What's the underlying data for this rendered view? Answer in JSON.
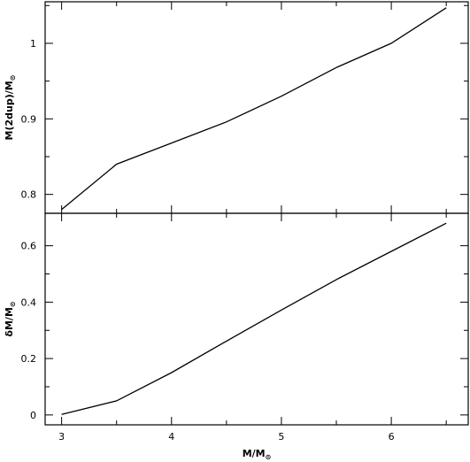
{
  "chart_data": [
    {
      "type": "line",
      "panel": "top",
      "title": "",
      "xlabel": "",
      "ylabel": "M(2dup)/M",
      "ylabel_subscript": "⊙",
      "xlim": [
        2.85,
        6.7
      ],
      "ylim": [
        0.775,
        1.055
      ],
      "grid": false,
      "x_ticks_major": [
        3,
        4,
        5,
        6
      ],
      "x_ticks_minor": [
        3.5,
        4.5,
        5.5,
        6.5
      ],
      "y_ticks_major": [
        0.8,
        0.9,
        1
      ],
      "y_tick_labels": [
        "0.8",
        "0.9",
        "1"
      ],
      "y_ticks_minor": [
        0.85,
        0.95,
        1.05
      ],
      "series": [
        {
          "x": [
            3,
            3.5,
            4,
            4.5,
            5,
            5.5,
            6,
            6.5
          ],
          "y": [
            0.78,
            0.84,
            0.868,
            0.896,
            0.93,
            0.968,
            1.0,
            1.047
          ]
        }
      ]
    },
    {
      "type": "line",
      "panel": "bottom",
      "title": "",
      "xlabel": "M/M",
      "xlabel_subscript": "⊙",
      "ylabel": "δM/M",
      "ylabel_subscript": "⊙",
      "xlim": [
        2.85,
        6.7
      ],
      "ylim": [
        -0.035,
        0.715
      ],
      "grid": false,
      "x_ticks_major": [
        3,
        4,
        5,
        6
      ],
      "x_tick_labels": [
        "3",
        "4",
        "5",
        "6"
      ],
      "x_ticks_minor": [
        3.5,
        4.5,
        5.5,
        6.5
      ],
      "y_ticks_major": [
        0,
        0.2,
        0.4,
        0.6
      ],
      "y_tick_labels": [
        "0",
        "0.2",
        "0.4",
        "0.6"
      ],
      "y_ticks_minor": [
        0.1,
        0.3,
        0.5
      ],
      "series": [
        {
          "x": [
            3,
            3.5,
            4,
            4.5,
            5,
            5.5,
            6,
            6.5
          ],
          "y": [
            0.002,
            0.05,
            0.15,
            0.262,
            0.372,
            0.48,
            0.58,
            0.68
          ]
        }
      ]
    }
  ]
}
